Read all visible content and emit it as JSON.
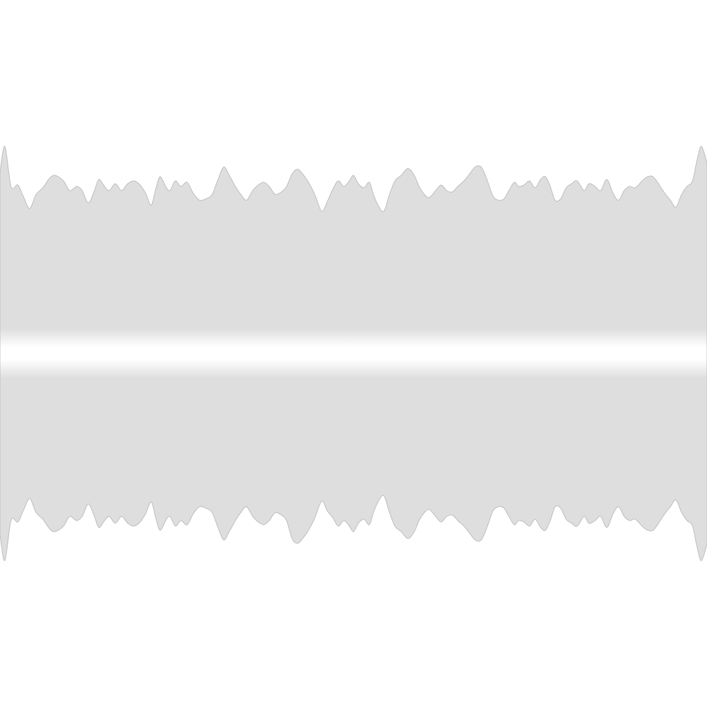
{
  "colors": {
    "background": "#ffffff",
    "band": "#dedede",
    "edge": "#bdbdbd",
    "highlight": "#ffffff"
  },
  "graphic": {
    "kind": "mirrored-waveform-band",
    "waveform_shape": "irregular-peaks",
    "center_highlight": true
  }
}
